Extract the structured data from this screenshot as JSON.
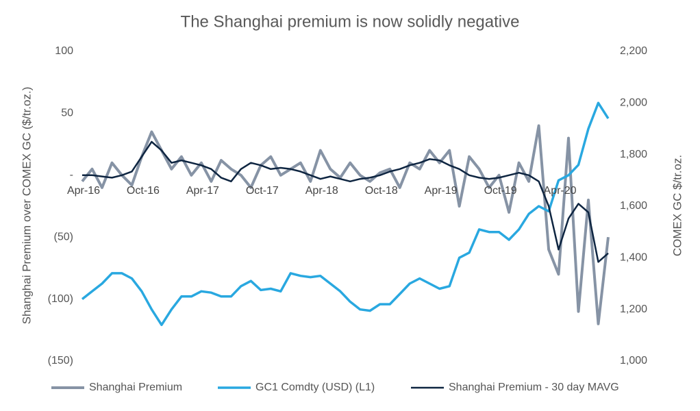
{
  "chart_data": {
    "type": "line",
    "title": "The Shanghai premium is now solidly negative",
    "y_label": "Shanghai Premium over COMEX GC ($/tr.oz.)",
    "y2_label": "COMEX GC $/tr.oz.",
    "x": [
      "Apr-16",
      "May-16",
      "Jun-16",
      "Jul-16",
      "Aug-16",
      "Sep-16",
      "Oct-16",
      "Nov-16",
      "Dec-16",
      "Jan-17",
      "Feb-17",
      "Mar-17",
      "Apr-17",
      "May-17",
      "Jun-17",
      "Jul-17",
      "Aug-17",
      "Sep-17",
      "Oct-17",
      "Nov-17",
      "Dec-17",
      "Jan-18",
      "Feb-18",
      "Mar-18",
      "Apr-18",
      "May-18",
      "Jun-18",
      "Jul-18",
      "Aug-18",
      "Sep-18",
      "Oct-18",
      "Nov-18",
      "Dec-18",
      "Jan-19",
      "Feb-19",
      "Mar-19",
      "Apr-19",
      "May-19",
      "Jun-19",
      "Jul-19",
      "Aug-19",
      "Sep-19",
      "Oct-19",
      "Nov-19",
      "Dec-19",
      "Jan-20",
      "Feb-20",
      "Mar-20",
      "Apr-20",
      "May-20",
      "Jun-20",
      "Jul-20",
      "Aug-20",
      "Sep-20"
    ],
    "xticks": [
      "Apr-16",
      "Oct-16",
      "Apr-17",
      "Oct-17",
      "Apr-18",
      "Oct-18",
      "Apr-19",
      "Oct-19",
      "Apr-20"
    ],
    "ylim": [
      -150,
      100
    ],
    "yticks": [
      {
        "value": -150,
        "label": "(150)"
      },
      {
        "value": -100,
        "label": "(100)"
      },
      {
        "value": -50,
        "label": "(50)"
      },
      {
        "value": 0,
        "label": "-"
      },
      50,
      100
    ],
    "y2lim": [
      1000,
      2200
    ],
    "y2ticks": [
      {
        "value": 1000,
        "label": "1,000"
      },
      {
        "value": 1200,
        "label": "1,200"
      },
      {
        "value": 1400,
        "label": "1,400"
      },
      {
        "value": 1600,
        "label": "1,600"
      },
      {
        "value": 1800,
        "label": "1,800"
      },
      {
        "value": 2000,
        "label": "2,000"
      },
      {
        "value": 2200,
        "label": "2,200"
      }
    ],
    "series": [
      {
        "name": "Shanghai Premium",
        "color": "#8693a5",
        "width": 4,
        "values": [
          -5,
          5,
          -10,
          10,
          0,
          -8,
          15,
          35,
          20,
          5,
          15,
          0,
          10,
          -5,
          12,
          5,
          0,
          -10,
          8,
          15,
          0,
          5,
          10,
          -5,
          20,
          5,
          -2,
          10,
          0,
          -5,
          2,
          5,
          -10,
          10,
          5,
          20,
          10,
          20,
          -25,
          15,
          5,
          -10,
          0,
          -30,
          10,
          -5,
          40,
          -60,
          -80,
          30,
          -110,
          -20,
          -120,
          -50
        ]
      },
      {
        "name": "GC1 Comdty (USD)  (L1)",
        "color": "#29a8e0",
        "width": 3.5,
        "axis": "y2",
        "values": [
          1240,
          1270,
          1300,
          1340,
          1340,
          1320,
          1270,
          1200,
          1140,
          1200,
          1250,
          1250,
          1270,
          1265,
          1250,
          1250,
          1290,
          1310,
          1275,
          1280,
          1270,
          1340,
          1330,
          1325,
          1330,
          1300,
          1270,
          1230,
          1200,
          1195,
          1220,
          1220,
          1260,
          1300,
          1320,
          1300,
          1280,
          1290,
          1400,
          1420,
          1510,
          1500,
          1500,
          1470,
          1510,
          1570,
          1600,
          1580,
          1700,
          1720,
          1760,
          1900,
          2000,
          1940
        ]
      },
      {
        "name": "Shanghai Premium - 30 day MAVG",
        "color": "#0e2541",
        "width": 2.5,
        "values": [
          0,
          0,
          -1,
          -2,
          0,
          3,
          15,
          27,
          20,
          10,
          12,
          10,
          8,
          5,
          -2,
          -5,
          5,
          10,
          8,
          5,
          6,
          5,
          3,
          0,
          -3,
          -1,
          -3,
          -5,
          -3,
          -2,
          0,
          3,
          5,
          8,
          10,
          13,
          12,
          8,
          5,
          0,
          -2,
          -3,
          -2,
          0,
          2,
          0,
          -5,
          -25,
          -60,
          -35,
          -23,
          -30,
          -70,
          -63
        ]
      }
    ]
  }
}
